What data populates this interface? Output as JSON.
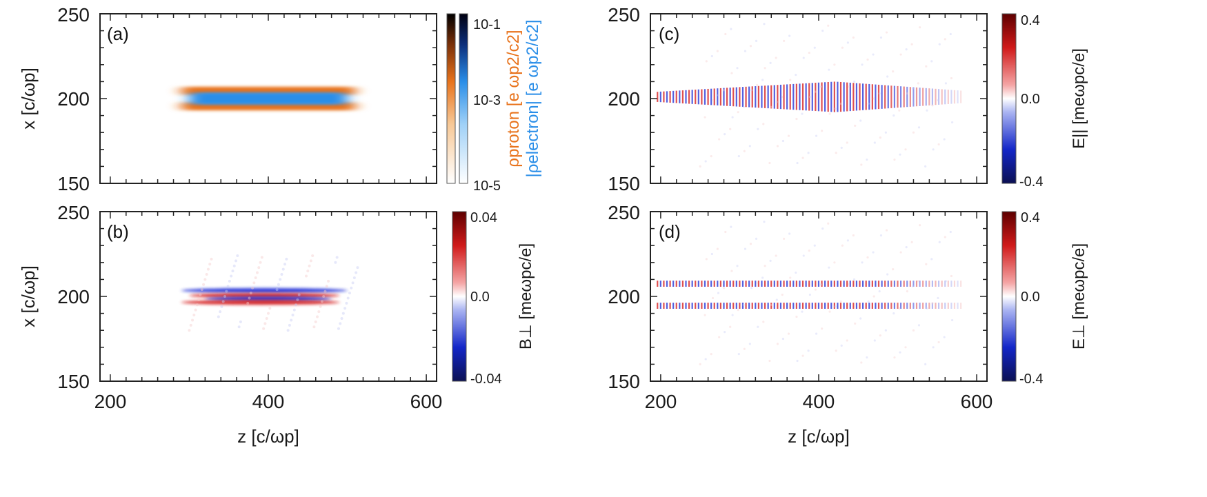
{
  "chart_data": [
    {
      "panel": "(a)",
      "type": "heatmap",
      "xlim": [
        200,
        600
      ],
      "ylim": [
        150,
        250
      ],
      "x_ticks": [
        "200",
        "400",
        "600"
      ],
      "y_ticks": [
        "150",
        "200",
        "250"
      ],
      "ylabel": "x [c/ωp]",
      "colorbar": {
        "scale": "log",
        "tick_labels": [
          "10-1",
          "10-3",
          "10-5"
        ],
        "tick_values": [
          -1,
          -3,
          -5
        ],
        "label_proton": "ρproton [e ωp2/c2]",
        "label_electron": "|ρelectron| [e ωp2/c2]",
        "proton_color": "#e8731c",
        "electron_color": "#2a8ee8"
      },
      "structures": [
        {
          "name": "proton sheath upper",
          "z": [
            290,
            510
          ],
          "x_center": 204.5
        },
        {
          "name": "proton sheath lower",
          "z": [
            290,
            510
          ],
          "x_center": 195.5
        },
        {
          "name": "electron core",
          "z": [
            300,
            500
          ],
          "x_center": 200
        }
      ]
    },
    {
      "panel": "(b)",
      "type": "heatmap",
      "xlim": [
        200,
        600
      ],
      "ylim": [
        150,
        250
      ],
      "x_ticks": [
        "200",
        "400",
        "600"
      ],
      "y_ticks": [
        "150",
        "200",
        "250"
      ],
      "xlabel": "z [c/ωp]",
      "ylabel": "x [c/ωp]",
      "colorbar": {
        "scale": "linear",
        "range": [
          -0.04,
          0.04
        ],
        "tick_labels": [
          "0.04",
          "0.0",
          "-0.04"
        ],
        "tick_values": [
          0.04,
          0.0,
          -0.04
        ],
        "label": "B⊥ [meωpc/e]"
      },
      "structures": [
        {
          "name": "negative band upper",
          "z": [
            290,
            500
          ],
          "x_center": 203.5,
          "sign": -1
        },
        {
          "name": "positive band center",
          "z": [
            300,
            490
          ],
          "x_center": 200.5,
          "sign": 1
        },
        {
          "name": "negative band center",
          "z": [
            320,
            480
          ],
          "x_center": 198.5,
          "sign": -1
        },
        {
          "name": "positive band lower",
          "z": [
            290,
            490
          ],
          "x_center": 196.5,
          "sign": 1
        }
      ]
    },
    {
      "panel": "(c)",
      "type": "heatmap",
      "xlim": [
        200,
        600
      ],
      "ylim": [
        150,
        250
      ],
      "x_ticks": [
        "200",
        "400",
        "600"
      ],
      "y_ticks": [
        "150",
        "200",
        "250"
      ],
      "ylabel": "x [c/ωp]",
      "colorbar": {
        "scale": "linear",
        "range": [
          -0.4,
          0.4
        ],
        "tick_labels": [
          "0.4",
          "0.0",
          "-0.4"
        ],
        "tick_values": [
          0.4,
          0.0,
          -0.4
        ],
        "label": "E|| [meωpc/e]"
      },
      "structures": [
        {
          "name": "oscillating wake",
          "z": [
            195,
            560
          ],
          "x_center": 201,
          "x_halfwidth_max": 9
        }
      ]
    },
    {
      "panel": "(d)",
      "type": "heatmap",
      "xlim": [
        200,
        600
      ],
      "ylim": [
        150,
        250
      ],
      "x_ticks": [
        "200",
        "400",
        "600"
      ],
      "y_ticks": [
        "150",
        "200",
        "250"
      ],
      "xlabel": "z [c/ωp]",
      "ylabel": "x [c/ωp]",
      "colorbar": {
        "scale": "linear",
        "range": [
          -0.4,
          0.4
        ],
        "tick_labels": [
          "0.4",
          "0.0",
          "-0.4"
        ],
        "tick_values": [
          0.4,
          0.0,
          -0.4
        ],
        "label": "E⊥ [meωpc/e]"
      },
      "structures": [
        {
          "name": "upper oscillation band",
          "z": [
            195,
            580
          ],
          "x_center": 207
        },
        {
          "name": "lower oscillation band",
          "z": [
            195,
            580
          ],
          "x_center": 195
        }
      ]
    }
  ]
}
